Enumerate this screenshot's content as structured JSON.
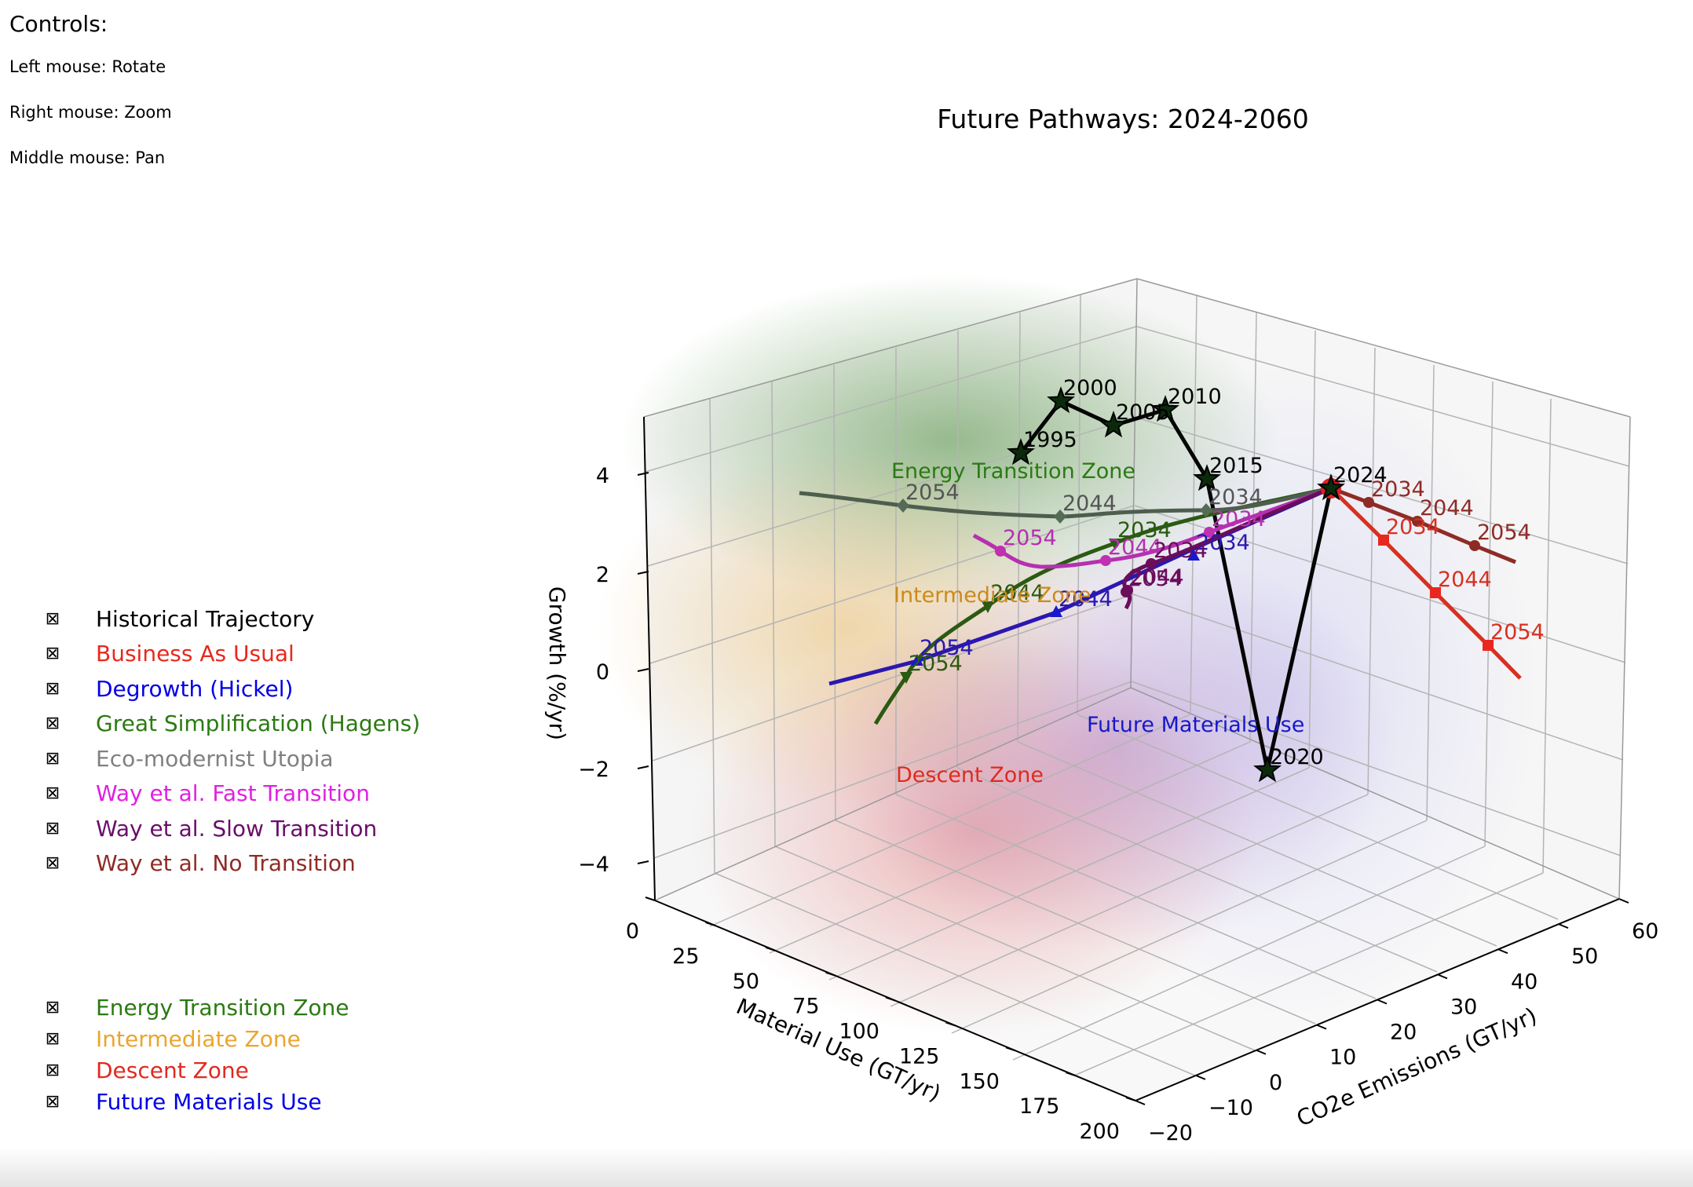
{
  "controls": {
    "title": "Controls:",
    "lines": [
      "Left mouse: Rotate",
      "Right mouse: Zoom",
      "Middle mouse: Pan"
    ]
  },
  "legend_series": [
    {
      "label": "Historical Trajectory",
      "color": "#000000",
      "checkbox": "⊠"
    },
    {
      "label": "Business As Usual",
      "color": "#e8281e",
      "checkbox": "⊠"
    },
    {
      "label": "Degrowth (Hickel)",
      "color": "#0000e6",
      "checkbox": "⊠"
    },
    {
      "label": "Great Simplification (Hagens)",
      "color": "#2b7a12",
      "checkbox": "⊠"
    },
    {
      "label": "Eco-modernist Utopia",
      "color": "#808080",
      "checkbox": "⊠"
    },
    {
      "label": "Way et al. Fast Transition",
      "color": "#e020e0",
      "checkbox": "⊠"
    },
    {
      "label": "Way et al. Slow Transition",
      "color": "#6a0d6a",
      "checkbox": "⊠"
    },
    {
      "label": "Way et al. No Transition",
      "color": "#8f2b26",
      "checkbox": "⊠"
    }
  ],
  "legend_zones": [
    {
      "label": "Energy Transition Zone",
      "color": "#2b7a12",
      "checkbox": "⊠"
    },
    {
      "label": "Intermediate Zone",
      "color": "#eba52c",
      "checkbox": "⊠"
    },
    {
      "label": "Descent Zone",
      "color": "#e02a20",
      "checkbox": "⊠"
    },
    {
      "label": "Future Materials Use",
      "color": "#0000e6",
      "checkbox": "⊠"
    }
  ],
  "chart_data": {
    "type": "line3d",
    "title": "Future Pathways: 2024-2060",
    "xlabel": "Material Use (GT/yr)",
    "ylabel": "CO2e Emissions (GT/yr)",
    "zlabel": "Growth (%/yr)",
    "xlim": [
      0,
      200
    ],
    "ylim": [
      -20,
      60
    ],
    "zlim": [
      -5,
      5
    ],
    "xticks": [
      "0",
      "25",
      "50",
      "75",
      "100",
      "125",
      "150",
      "175",
      "200"
    ],
    "yticks": [
      "−20",
      "−10",
      "0",
      "10",
      "20",
      "30",
      "40",
      "50",
      "60"
    ],
    "zticks": [
      "−4",
      "−2",
      "0",
      "2",
      "4"
    ],
    "zone_labels": [
      {
        "text": "Energy Transition Zone",
        "color": "#2b7a12"
      },
      {
        "text": "Intermediate Zone",
        "color": "#cc8a1a"
      },
      {
        "text": "Descent Zone",
        "color": "#e02a20"
      },
      {
        "text": "Future Materials Use",
        "color": "#1818cc"
      }
    ],
    "series": [
      {
        "name": "Historical Trajectory",
        "color": "#000000",
        "marker": "star",
        "points": [
          {
            "label": "1995",
            "x": 70,
            "y": 30,
            "z": 4.6
          },
          {
            "label": "2000",
            "x": 70,
            "y": 38,
            "z": 5.6
          },
          {
            "label": "2005",
            "x": 70,
            "y": 44,
            "z": 4.4
          },
          {
            "label": "2010",
            "x": 60,
            "y": 48,
            "z": 4.2
          },
          {
            "label": "2015",
            "x": 80,
            "y": 48,
            "z": 3.1
          },
          {
            "label": "2020",
            "x": 120,
            "y": 52,
            "z": -3.0
          },
          {
            "label": "2024",
            "x": 100,
            "y": 56,
            "z": 3.1
          }
        ]
      },
      {
        "name": "Business As Usual",
        "color": "#e8281e",
        "marker": "square",
        "points": [
          {
            "label": "2024",
            "x": 100,
            "y": 56,
            "z": 3.1
          },
          {
            "label": "2034",
            "x": 130,
            "y": 60,
            "z": 2.5
          },
          {
            "label": "2044",
            "x": 160,
            "y": 62,
            "z": 1.8
          },
          {
            "label": "2054",
            "x": 190,
            "y": 66,
            "z": 1.3
          },
          {
            "label": "",
            "x": 200,
            "y": 70,
            "z": 0.6
          }
        ]
      },
      {
        "name": "Degrowth (Hickel)",
        "color": "#1818cc",
        "marker": "triangle",
        "points": [
          {
            "label": "2024",
            "x": 100,
            "y": 56,
            "z": 3.1
          },
          {
            "label": "2034",
            "x": 95,
            "y": 34,
            "z": 2.3
          },
          {
            "label": "2044",
            "x": 90,
            "y": 14,
            "z": 0.9
          },
          {
            "label": "2054",
            "x": 85,
            "y": -2,
            "z": 0.0
          },
          {
            "label": "",
            "x": 80,
            "y": -10,
            "z": -0.4
          }
        ]
      },
      {
        "name": "Great Simplification (Hagens)",
        "color": "#2b5a12",
        "marker": "tri_down",
        "points": [
          {
            "label": "2024",
            "x": 100,
            "y": 56,
            "z": 3.1
          },
          {
            "label": "2034",
            "x": 80,
            "y": 34,
            "z": 2.2
          },
          {
            "label": "2044",
            "x": 60,
            "y": 18,
            "z": 1.0
          },
          {
            "label": "2054",
            "x": 40,
            "y": 6,
            "z": -0.5
          },
          {
            "label": "",
            "x": 30,
            "y": 0,
            "z": -1.2
          }
        ]
      },
      {
        "name": "Eco-modernist Utopia",
        "color": "#556b55",
        "marker": "diamond",
        "points": [
          {
            "label": "2024",
            "x": 100,
            "y": 56,
            "z": 3.1
          },
          {
            "label": "2034",
            "x": 80,
            "y": 45,
            "z": 3.0
          },
          {
            "label": "2044",
            "x": 55,
            "y": 30,
            "z": 3.0
          },
          {
            "label": "2054",
            "x": 30,
            "y": 18,
            "z": 3.2
          },
          {
            "label": "",
            "x": 10,
            "y": 10,
            "z": 3.4
          }
        ]
      },
      {
        "name": "Way et al. Fast Transition",
        "color": "#c030b0",
        "marker": "circle",
        "points": [
          {
            "label": "2024",
            "x": 100,
            "y": 56,
            "z": 3.1
          },
          {
            "label": "2034",
            "x": 85,
            "y": 40,
            "z": 2.2
          },
          {
            "label": "2044",
            "x": 70,
            "y": 26,
            "z": 1.8
          },
          {
            "label": "2054",
            "x": 55,
            "y": 18,
            "z": 2.1
          },
          {
            "label": "",
            "x": 45,
            "y": 14,
            "z": 2.6
          }
        ]
      },
      {
        "name": "Way et al. Slow Transition",
        "color": "#6a0d5a",
        "marker": "circle",
        "points": [
          {
            "label": "2024",
            "x": 100,
            "y": 56,
            "z": 3.1
          },
          {
            "label": "2034",
            "x": 98,
            "y": 46,
            "z": 2.3
          },
          {
            "label": "2044",
            "x": 95,
            "y": 40,
            "z": 1.6
          },
          {
            "label": "2054",
            "x": 92,
            "y": 36,
            "z": 0.7
          },
          {
            "label": "",
            "x": 90,
            "y": 35,
            "z": 0.2
          }
        ]
      },
      {
        "name": "Way et al. No Transition",
        "color": "#8f2b26",
        "marker": "circle",
        "points": [
          {
            "label": "2024",
            "x": 100,
            "y": 56,
            "z": 3.1
          },
          {
            "label": "2034",
            "x": 115,
            "y": 62,
            "z": 3.2
          },
          {
            "label": "2044",
            "x": 130,
            "y": 68,
            "z": 3.3
          },
          {
            "label": "2054",
            "x": 145,
            "y": 74,
            "z": 3.4
          },
          {
            "label": "",
            "x": 155,
            "y": 78,
            "z": 3.4
          }
        ]
      }
    ]
  }
}
